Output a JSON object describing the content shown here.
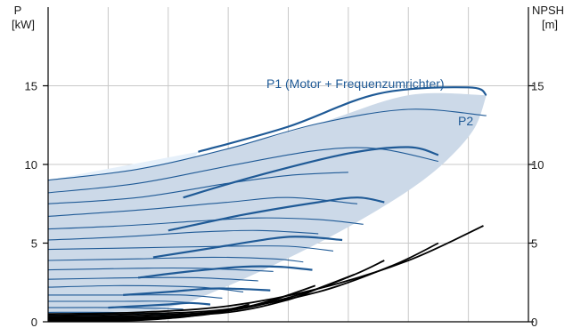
{
  "chart_data": {
    "type": "line",
    "title": "",
    "x_range": [
      0,
      16
    ],
    "y_left": {
      "label_line1": "P",
      "label_line2": "[kW]",
      "range": [
        0,
        20
      ],
      "ticks": [
        {
          "value": 0,
          "label": "0"
        },
        {
          "value": 5,
          "label": "5"
        },
        {
          "value": 10,
          "label": "10"
        },
        {
          "value": 15,
          "label": "15"
        }
      ]
    },
    "y_right": {
      "label_line1": "NPSH",
      "label_line2": "[m]",
      "range": [
        0,
        20
      ],
      "ticks": [
        {
          "value": 0,
          "label": "0"
        },
        {
          "value": 5,
          "label": "5"
        },
        {
          "value": 10,
          "label": "10"
        },
        {
          "value": 15,
          "label": "15"
        }
      ]
    },
    "grid": true,
    "grid_x_count": 8,
    "annotations": {
      "p1": "P1 (Motor + Frequenzumrichter)",
      "p2": "P2"
    },
    "colors": {
      "power_curve": "#1f5a96",
      "region_fill": "#ccd9e8",
      "region_left_fill": "#e6f0fa",
      "npsh_curve": "#000000",
      "grid": "#c8c8c8"
    },
    "p1_curves": [
      {
        "speed": 1.0,
        "points": [
          [
            5,
            10.8
          ],
          [
            8,
            12.4
          ],
          [
            11,
            14.5
          ],
          [
            14,
            14.9
          ],
          [
            14.6,
            14.4
          ]
        ]
      },
      {
        "speed": 0.9,
        "points": [
          [
            4.5,
            7.9
          ],
          [
            7,
            9.3
          ],
          [
            10,
            10.7
          ],
          [
            12,
            11.1
          ],
          [
            13,
            10.6
          ]
        ]
      },
      {
        "speed": 0.8,
        "points": [
          [
            4,
            5.8
          ],
          [
            6.5,
            6.8
          ],
          [
            9,
            7.6
          ],
          [
            10.3,
            7.9
          ],
          [
            11.2,
            7.6
          ]
        ]
      },
      {
        "speed": 0.7,
        "points": [
          [
            3.5,
            4.1
          ],
          [
            5.5,
            4.7
          ],
          [
            7.5,
            5.3
          ],
          [
            8.5,
            5.4
          ],
          [
            9.8,
            5.2
          ]
        ]
      },
      {
        "speed": 0.6,
        "points": [
          [
            3,
            2.8
          ],
          [
            4.7,
            3.2
          ],
          [
            6.5,
            3.5
          ],
          [
            7.7,
            3.5
          ],
          [
            8.8,
            3.3
          ]
        ]
      },
      {
        "speed": 0.5,
        "points": [
          [
            2.5,
            1.7
          ],
          [
            4,
            1.9
          ],
          [
            5.3,
            2.1
          ],
          [
            6.2,
            2.1
          ],
          [
            7.4,
            2.0
          ]
        ]
      },
      {
        "speed": 0.4,
        "points": [
          [
            2,
            0.9
          ],
          [
            3,
            1.0
          ],
          [
            4,
            1.1
          ],
          [
            4.7,
            1.2
          ],
          [
            5.4,
            1.1
          ]
        ]
      }
    ],
    "p2_curves": [
      {
        "speed": 1.0,
        "points": [
          [
            0,
            9.0
          ],
          [
            3,
            9.7
          ],
          [
            6,
            11.0
          ],
          [
            9,
            12.6
          ],
          [
            12,
            13.5
          ],
          [
            14.6,
            13.1
          ]
        ]
      },
      {
        "speed": 0.95,
        "points": [
          [
            0,
            8.2
          ],
          [
            3,
            8.8
          ],
          [
            6,
            9.9
          ],
          [
            9,
            10.9
          ],
          [
            11,
            11.0
          ],
          [
            13,
            10.2
          ]
        ]
      },
      {
        "speed": 0.9,
        "points": [
          [
            0,
            7.5
          ],
          [
            3,
            7.9
          ],
          [
            6,
            8.8
          ],
          [
            8,
            9.3
          ],
          [
            10,
            9.5
          ]
        ]
      },
      {
        "speed": 0.85,
        "points": [
          [
            0,
            6.7
          ],
          [
            3,
            7.1
          ],
          [
            6,
            7.6
          ],
          [
            8,
            7.9
          ],
          [
            10.3,
            7.5
          ]
        ]
      },
      {
        "speed": 0.8,
        "points": [
          [
            0,
            5.9
          ],
          [
            2.5,
            6.1
          ],
          [
            5,
            6.4
          ],
          [
            7,
            6.6
          ],
          [
            9,
            6.5
          ],
          [
            10.5,
            6.2
          ]
        ]
      },
      {
        "speed": 0.75,
        "points": [
          [
            0,
            5.2
          ],
          [
            2.5,
            5.4
          ],
          [
            5,
            5.7
          ],
          [
            7,
            5.8
          ],
          [
            9,
            5.6
          ]
        ]
      },
      {
        "speed": 0.7,
        "points": [
          [
            0,
            4.6
          ],
          [
            3,
            4.7
          ],
          [
            6,
            4.8
          ],
          [
            8,
            4.8
          ],
          [
            9.5,
            4.5
          ]
        ]
      },
      {
        "speed": 0.65,
        "points": [
          [
            0,
            3.9
          ],
          [
            3,
            4.0
          ],
          [
            5.5,
            4.1
          ],
          [
            7.5,
            4.0
          ],
          [
            8.5,
            3.8
          ]
        ]
      },
      {
        "speed": 0.6,
        "points": [
          [
            0,
            3.3
          ],
          [
            3,
            3.4
          ],
          [
            5,
            3.4
          ],
          [
            7.5,
            3.2
          ]
        ]
      },
      {
        "speed": 0.55,
        "points": [
          [
            0,
            2.7
          ],
          [
            3,
            2.8
          ],
          [
            5,
            2.8
          ],
          [
            7,
            2.6
          ]
        ]
      },
      {
        "speed": 0.5,
        "points": [
          [
            0,
            2.2
          ],
          [
            2.5,
            2.3
          ],
          [
            5,
            2.2
          ],
          [
            6.5,
            1.9
          ]
        ]
      },
      {
        "speed": 0.45,
        "points": [
          [
            0,
            1.7
          ],
          [
            2.5,
            1.7
          ],
          [
            4.5,
            1.7
          ],
          [
            5.8,
            1.5
          ]
        ]
      },
      {
        "speed": 0.4,
        "points": [
          [
            0,
            1.3
          ],
          [
            2.5,
            1.3
          ],
          [
            4,
            1.3
          ],
          [
            5.4,
            1.1
          ]
        ]
      },
      {
        "speed": 0.35,
        "points": [
          [
            0,
            0.9
          ],
          [
            2.5,
            0.9
          ],
          [
            4.5,
            0.8
          ]
        ]
      },
      {
        "speed": 0.3,
        "points": [
          [
            0,
            0.6
          ],
          [
            2,
            0.6
          ],
          [
            4,
            0.5
          ]
        ]
      },
      {
        "speed": 0.25,
        "points": [
          [
            0,
            0.35
          ],
          [
            2,
            0.35
          ],
          [
            3.5,
            0.3
          ]
        ]
      }
    ],
    "region_boundary": {
      "upper": [
        [
          0,
          9.0
        ],
        [
          3,
          9.7
        ],
        [
          6,
          11.0
        ],
        [
          9,
          12.6
        ],
        [
          12,
          14.4
        ],
        [
          14.6,
          14.4
        ]
      ],
      "right": [
        [
          14.6,
          14.4
        ],
        [
          14.2,
          12.3
        ],
        [
          13.3,
          10.3
        ],
        [
          12.2,
          8.6
        ],
        [
          10.8,
          6.9
        ],
        [
          9.2,
          5.2
        ],
        [
          7.4,
          3.5
        ],
        [
          5.4,
          1.8
        ],
        [
          4.2,
          1.0
        ],
        [
          2.2,
          0.3
        ],
        [
          0,
          0.2
        ]
      ],
      "left_boundary": [
        [
          0,
          9.0
        ],
        [
          5,
          10.8
        ],
        [
          4,
          7.9
        ],
        [
          3,
          4.1
        ],
        [
          2.3,
          2.3
        ],
        [
          2,
          1.1
        ],
        [
          0,
          0.9
        ]
      ]
    },
    "npsh_curves": [
      {
        "points": [
          [
            0,
            0.5
          ],
          [
            3,
            0.6
          ],
          [
            6,
            1.0
          ],
          [
            9,
            2.1
          ],
          [
            12,
            3.9
          ],
          [
            14.5,
            6.1
          ]
        ]
      },
      {
        "points": [
          [
            0,
            0.4
          ],
          [
            3,
            0.5
          ],
          [
            6,
            0.8
          ],
          [
            9,
            1.9
          ],
          [
            11.5,
            3.6
          ],
          [
            13,
            5.0
          ]
        ]
      },
      {
        "points": [
          [
            0,
            0.3
          ],
          [
            3,
            0.4
          ],
          [
            6,
            0.7
          ],
          [
            8.5,
            1.8
          ],
          [
            10.2,
            3.0
          ],
          [
            11.2,
            3.9
          ]
        ]
      },
      {
        "points": [
          [
            0,
            0.25
          ],
          [
            3,
            0.3
          ],
          [
            6,
            0.6
          ],
          [
            8,
            1.4
          ],
          [
            9.1,
            2.2
          ],
          [
            10.2,
            3.0
          ]
        ]
      },
      {
        "points": [
          [
            0,
            0.2
          ],
          [
            3,
            0.25
          ],
          [
            5,
            0.5
          ],
          [
            7,
            1.1
          ],
          [
            8,
            1.7
          ],
          [
            8.9,
            2.3
          ]
        ]
      },
      {
        "points": [
          [
            0,
            0.15
          ],
          [
            3,
            0.2
          ],
          [
            5,
            0.4
          ],
          [
            6.5,
            0.9
          ],
          [
            7.7,
            1.5
          ]
        ]
      },
      {
        "points": [
          [
            0,
            0.1
          ],
          [
            3,
            0.15
          ],
          [
            4.5,
            0.3
          ],
          [
            5.8,
            0.7
          ],
          [
            6.7,
            1.1
          ]
        ]
      },
      {
        "points": [
          [
            0,
            0.08
          ],
          [
            3,
            0.1
          ],
          [
            4.4,
            0.3
          ],
          [
            5.3,
            0.6
          ]
        ]
      },
      {
        "points": [
          [
            0,
            0.05
          ],
          [
            2.5,
            0.08
          ],
          [
            3.7,
            0.2
          ],
          [
            4.5,
            0.4
          ]
        ]
      }
    ]
  }
}
